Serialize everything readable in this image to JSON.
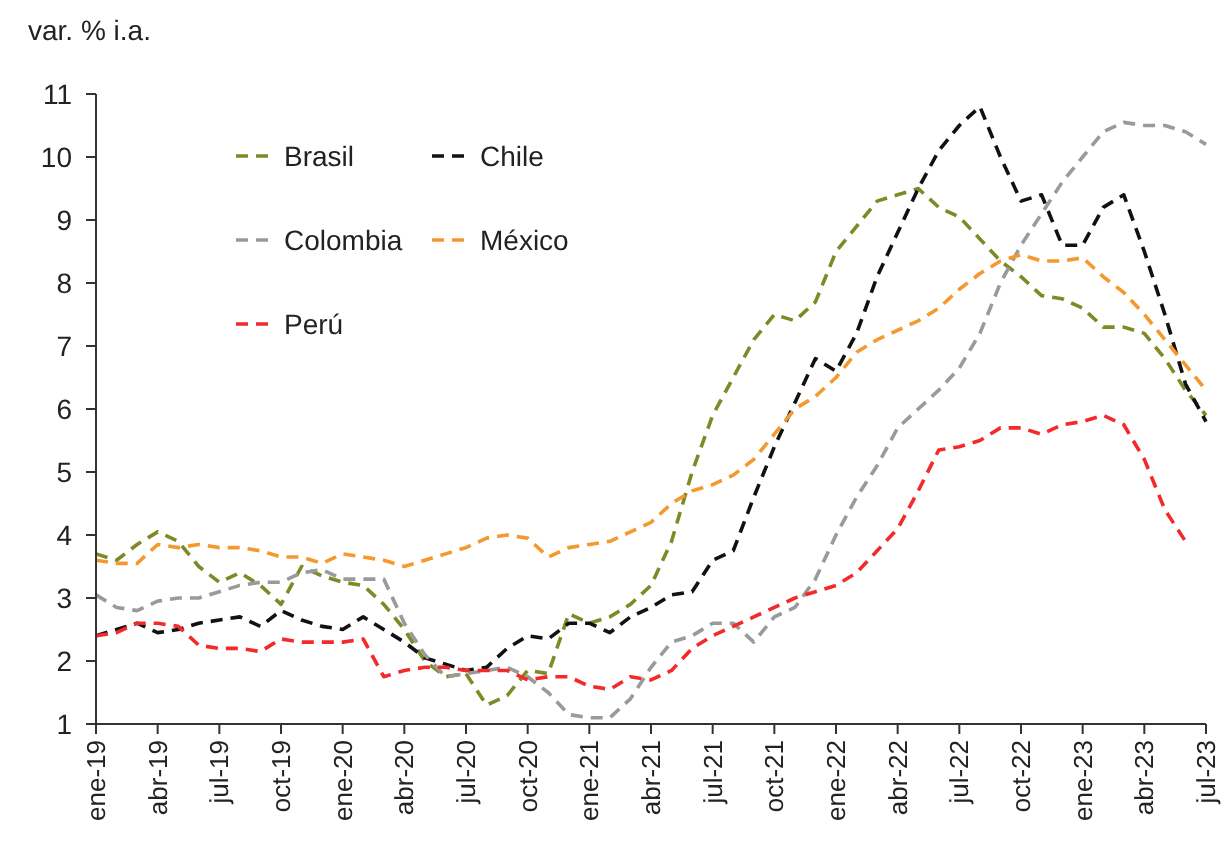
{
  "chart_data": {
    "type": "line",
    "ylabel": "var. % i.a.",
    "categories": [
      "ene-19",
      null,
      null,
      "abr-19",
      null,
      null,
      "jul-19",
      null,
      null,
      "oct-19",
      null,
      null,
      "ene-20",
      null,
      null,
      "abr-20",
      null,
      null,
      "jul-20",
      null,
      null,
      "oct-20",
      null,
      null,
      "ene-21",
      null,
      null,
      "abr-21",
      null,
      null,
      "jul-21",
      null,
      null,
      "oct-21",
      null,
      null,
      "ene-22",
      null,
      null,
      "abr-22",
      null,
      null,
      "jul-22",
      null,
      null,
      "oct-22",
      null,
      null,
      "ene-23",
      null,
      null,
      "abr-23",
      null,
      null,
      "jul-23"
    ],
    "series": [
      {
        "name": "Brasil",
        "color": "#7f8a26",
        "values": [
          3.7,
          3.6,
          3.85,
          4.05,
          3.9,
          3.5,
          3.25,
          3.4,
          3.2,
          2.9,
          3.5,
          3.35,
          3.25,
          3.2,
          2.9,
          2.5,
          2.0,
          1.75,
          1.8,
          1.3,
          1.45,
          1.85,
          1.8,
          2.75,
          2.6,
          2.7,
          2.9,
          3.2,
          3.9,
          5.0,
          5.9,
          6.5,
          7.1,
          7.5,
          7.4,
          7.7,
          8.5,
          8.9,
          9.3,
          9.4,
          9.5,
          9.2,
          9.05,
          8.7,
          8.35,
          8.1,
          7.8,
          7.75,
          7.6,
          7.3,
          7.3,
          7.2,
          6.8,
          6.3,
          5.9
        ]
      },
      {
        "name": "Chile",
        "color": "#111111",
        "values": [
          2.4,
          2.5,
          2.6,
          2.45,
          2.5,
          2.6,
          2.65,
          2.7,
          2.55,
          2.8,
          2.65,
          2.55,
          2.5,
          2.7,
          2.5,
          2.3,
          2.05,
          1.95,
          1.85,
          1.9,
          2.2,
          2.4,
          2.35,
          2.6,
          2.6,
          2.45,
          2.7,
          2.85,
          3.05,
          3.1,
          3.6,
          3.75,
          4.6,
          5.4,
          6.1,
          6.8,
          6.6,
          7.2,
          8.1,
          8.8,
          9.5,
          10.1,
          10.5,
          10.8,
          10.0,
          9.3,
          9.4,
          8.6,
          8.6,
          9.2,
          9.4,
          8.5,
          7.5,
          6.4,
          5.8
        ]
      },
      {
        "name": "Colombia",
        "color": "#9a9a9a",
        "values": [
          3.05,
          2.85,
          2.8,
          2.95,
          3.0,
          3.0,
          3.1,
          3.2,
          3.25,
          3.25,
          3.4,
          3.45,
          3.3,
          3.3,
          3.3,
          2.6,
          2.1,
          1.75,
          1.8,
          1.85,
          1.9,
          1.75,
          1.5,
          1.15,
          1.1,
          1.1,
          1.4,
          1.9,
          2.3,
          2.4,
          2.6,
          2.6,
          2.3,
          2.7,
          2.85,
          3.3,
          4.0,
          4.6,
          5.1,
          5.7,
          6.0,
          6.3,
          6.65,
          7.2,
          8.0,
          8.6,
          9.1,
          9.6,
          10.0,
          10.4,
          10.55,
          10.5,
          10.5,
          10.4,
          10.2
        ]
      },
      {
        "name": "México",
        "color": "#f5992e",
        "values": [
          3.6,
          3.55,
          3.55,
          3.85,
          3.8,
          3.85,
          3.8,
          3.8,
          3.75,
          3.65,
          3.65,
          3.55,
          3.7,
          3.65,
          3.6,
          3.5,
          3.6,
          3.7,
          3.8,
          3.95,
          4.0,
          3.95,
          3.65,
          3.8,
          3.85,
          3.9,
          4.05,
          4.2,
          4.5,
          4.7,
          4.8,
          4.95,
          5.2,
          5.6,
          6.0,
          6.2,
          6.5,
          6.9,
          7.1,
          7.25,
          7.4,
          7.6,
          7.9,
          8.15,
          8.35,
          8.45,
          8.35,
          8.35,
          8.4,
          8.1,
          7.85,
          7.5,
          7.1,
          6.7,
          6.3
        ]
      },
      {
        "name": "Perú",
        "color": "#f42a2a",
        "values": [
          2.4,
          2.45,
          2.6,
          2.6,
          2.55,
          2.25,
          2.2,
          2.2,
          2.15,
          2.35,
          2.3,
          2.3,
          2.3,
          2.35,
          1.75,
          1.85,
          1.9,
          1.9,
          1.85,
          1.85,
          1.85,
          1.7,
          1.75,
          1.75,
          1.6,
          1.55,
          1.75,
          1.7,
          1.85,
          2.2,
          2.4,
          2.55,
          2.7,
          2.85,
          3.0,
          3.1,
          3.2,
          3.4,
          3.75,
          4.1,
          4.7,
          5.35,
          5.4,
          5.5,
          5.7,
          5.7,
          5.6,
          5.75,
          5.8,
          5.9,
          5.75,
          5.2,
          4.4,
          3.9,
          null
        ]
      }
    ],
    "ylim": [
      1,
      11
    ],
    "yticks": [
      1,
      2,
      3,
      4,
      5,
      6,
      7,
      8,
      9,
      10,
      11
    ],
    "grid": false,
    "legend": "top left",
    "line_style": "dashed"
  }
}
